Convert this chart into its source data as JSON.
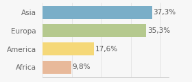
{
  "categories": [
    "Africa",
    "America",
    "Europa",
    "Asia"
  ],
  "values": [
    9.8,
    17.6,
    35.3,
    37.3
  ],
  "labels": [
    "9,8%",
    "17,6%",
    "35,3%",
    "37,3%"
  ],
  "bar_colors": [
    "#e8b99a",
    "#f5d878",
    "#b5c98e",
    "#7aaec8"
  ],
  "background_color": "#f7f7f7",
  "xlim": [
    0,
    43
  ],
  "bar_height": 0.72,
  "label_fontsize": 7.5,
  "category_fontsize": 7.5
}
